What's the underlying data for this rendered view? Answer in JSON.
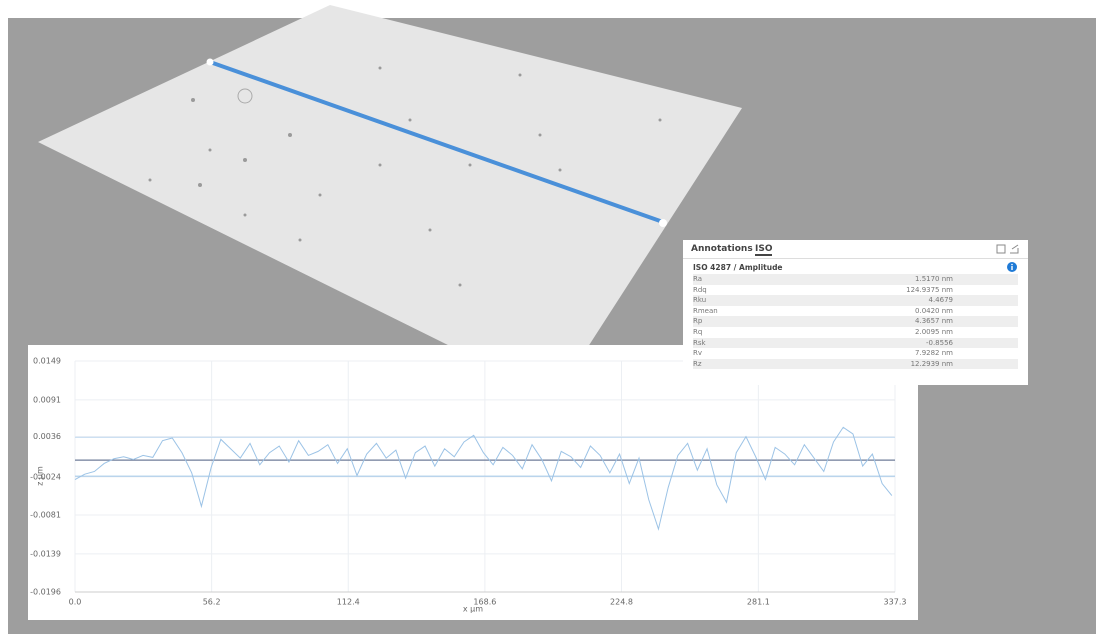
{
  "chart_data": {
    "type": "line",
    "x_label": "x µm",
    "y_label": "z µm",
    "x": [
      0,
      4,
      8,
      12,
      16,
      20,
      24,
      28,
      32,
      36,
      40,
      44,
      48,
      52,
      56,
      60,
      64,
      68,
      72,
      76,
      80,
      84,
      88,
      92,
      96,
      100,
      104,
      108,
      112,
      116,
      120,
      124,
      128,
      132,
      136,
      140,
      144,
      148,
      152,
      156,
      160,
      164,
      168,
      172,
      176,
      180,
      184,
      188,
      192,
      196,
      200,
      204,
      208,
      212,
      216,
      220,
      224,
      228,
      232,
      236,
      240,
      244,
      248,
      252,
      256,
      260,
      264,
      268,
      272,
      276,
      280,
      284,
      288,
      292,
      296,
      300,
      304,
      308,
      312,
      316,
      320,
      324,
      328,
      332,
      336
    ],
    "values": [
      -0.0028,
      -0.002,
      -0.0016,
      -0.0004,
      0.0003,
      0.0006,
      0.0002,
      0.0008,
      0.0005,
      0.003,
      0.0034,
      0.0012,
      -0.0018,
      -0.0068,
      -0.001,
      0.0032,
      0.0018,
      0.0004,
      0.0026,
      -0.0006,
      0.0012,
      0.0022,
      -0.0002,
      0.003,
      0.0008,
      0.0014,
      0.0024,
      -0.0004,
      0.0018,
      -0.0022,
      0.001,
      0.0026,
      0.0004,
      0.0016,
      -0.0026,
      0.0012,
      0.0022,
      -0.0008,
      0.0018,
      0.0006,
      0.0028,
      0.0038,
      0.0012,
      -0.0006,
      0.002,
      0.0008,
      -0.0012,
      0.0024,
      0.0002,
      -0.003,
      0.0014,
      0.0006,
      -0.001,
      0.0022,
      0.0008,
      -0.0018,
      0.001,
      -0.0034,
      0.0004,
      -0.0058,
      -0.0102,
      -0.004,
      0.0008,
      0.0026,
      -0.0014,
      0.0018,
      -0.0036,
      -0.0062,
      0.0012,
      0.0036,
      0.0006,
      -0.0028,
      0.002,
      0.001,
      -0.0006,
      0.0024,
      0.0004,
      -0.0016,
      0.0028,
      0.005,
      0.004,
      -0.0008,
      0.001,
      -0.0034,
      -0.0052
    ],
    "color": "#9cc3e6",
    "reference_lines": [
      {
        "value": 0.0001,
        "color": "#6f7c98"
      },
      {
        "value": 0.0035,
        "color": "#c6dcf0"
      },
      {
        "value": -0.0023,
        "color": "#a9cbe9"
      }
    ],
    "xlim": [
      0,
      337.3
    ],
    "xticks": [
      {
        "value": 0,
        "label": "0.0"
      },
      56.2,
      112.4,
      168.6,
      224.8,
      281.1,
      337.3
    ],
    "ylim": [
      -0.0196,
      0.0149
    ],
    "yticks": [
      0.0149,
      0.0091,
      0.0036,
      -0.0024,
      -0.0081,
      -0.0139,
      -0.0196
    ],
    "grid": true
  },
  "panel": {
    "tabs": [
      "Annotations",
      "ISO"
    ],
    "heading": "ISO 4287 / Amplitude",
    "rows": [
      [
        "Ra",
        "1.5170 nm"
      ],
      [
        "Rdq",
        "124.9375 nm"
      ],
      [
        "Rku",
        "4.4679"
      ],
      [
        "Rmean",
        "0.0420 nm"
      ],
      [
        "Rp",
        "4.3657 nm"
      ],
      [
        "Rq",
        "2.0095 nm"
      ],
      [
        "Rsk",
        "-0.8556"
      ],
      [
        "Rv",
        "7.9282 nm"
      ],
      [
        "Rz",
        "12.2939 nm"
      ]
    ]
  }
}
